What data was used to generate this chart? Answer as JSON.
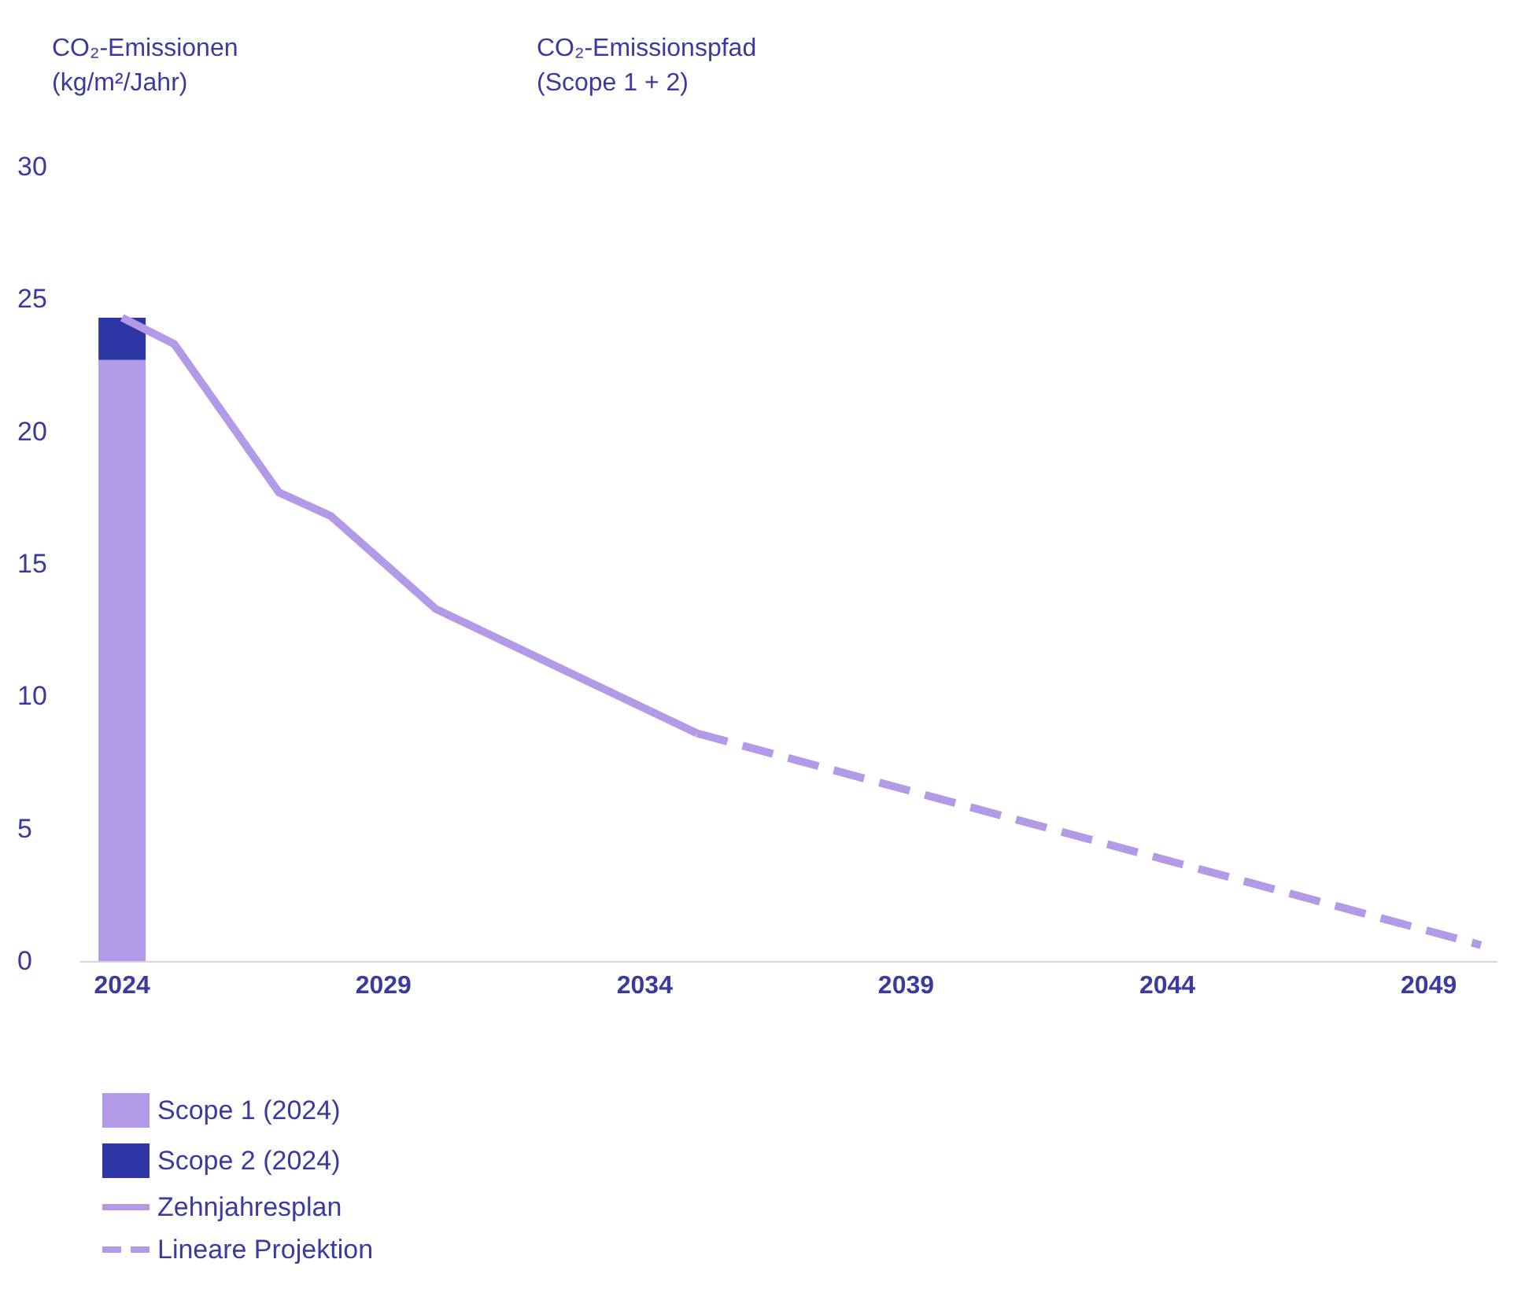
{
  "chart_data": {
    "type": "line",
    "title": "CO₂-Emissionspfad\n(Scope 1 + 2)",
    "ylabel": "CO₂-Emissionen\n(kg/m²/Jahr)",
    "stacked": true,
    "xlim": [
      2023.2,
      2050.3
    ],
    "xticks": [
      2024,
      2029,
      2034,
      2039,
      2044,
      2049
    ],
    "ylim": [
      0,
      30
    ],
    "yticks": [
      0,
      5,
      10,
      15,
      20,
      25,
      30
    ],
    "grid": false,
    "legend": "bottom left",
    "series": [
      {
        "name": "Scope 1 (2024)",
        "type": "bar",
        "color": "#b39ae6",
        "x": [
          2024
        ],
        "values": [
          22.7
        ]
      },
      {
        "name": "Scope 2 (2024)",
        "type": "bar",
        "color": "#2e36a6",
        "x": [
          2024
        ],
        "values": [
          1.6
        ]
      },
      {
        "name": "Zehnjahresplan",
        "color": "#b39ae6",
        "line_style": "solid",
        "x": [
          2024,
          2025,
          2027,
          2028,
          2030,
          2035
        ],
        "values": [
          24.3,
          23.3,
          17.7,
          16.8,
          13.3,
          8.6
        ]
      },
      {
        "name": "Lineare Projektion",
        "color": "#b39ae6",
        "line_style": "dashed",
        "x": [
          2035,
          2050
        ],
        "values": [
          8.6,
          0.6
        ]
      }
    ]
  }
}
